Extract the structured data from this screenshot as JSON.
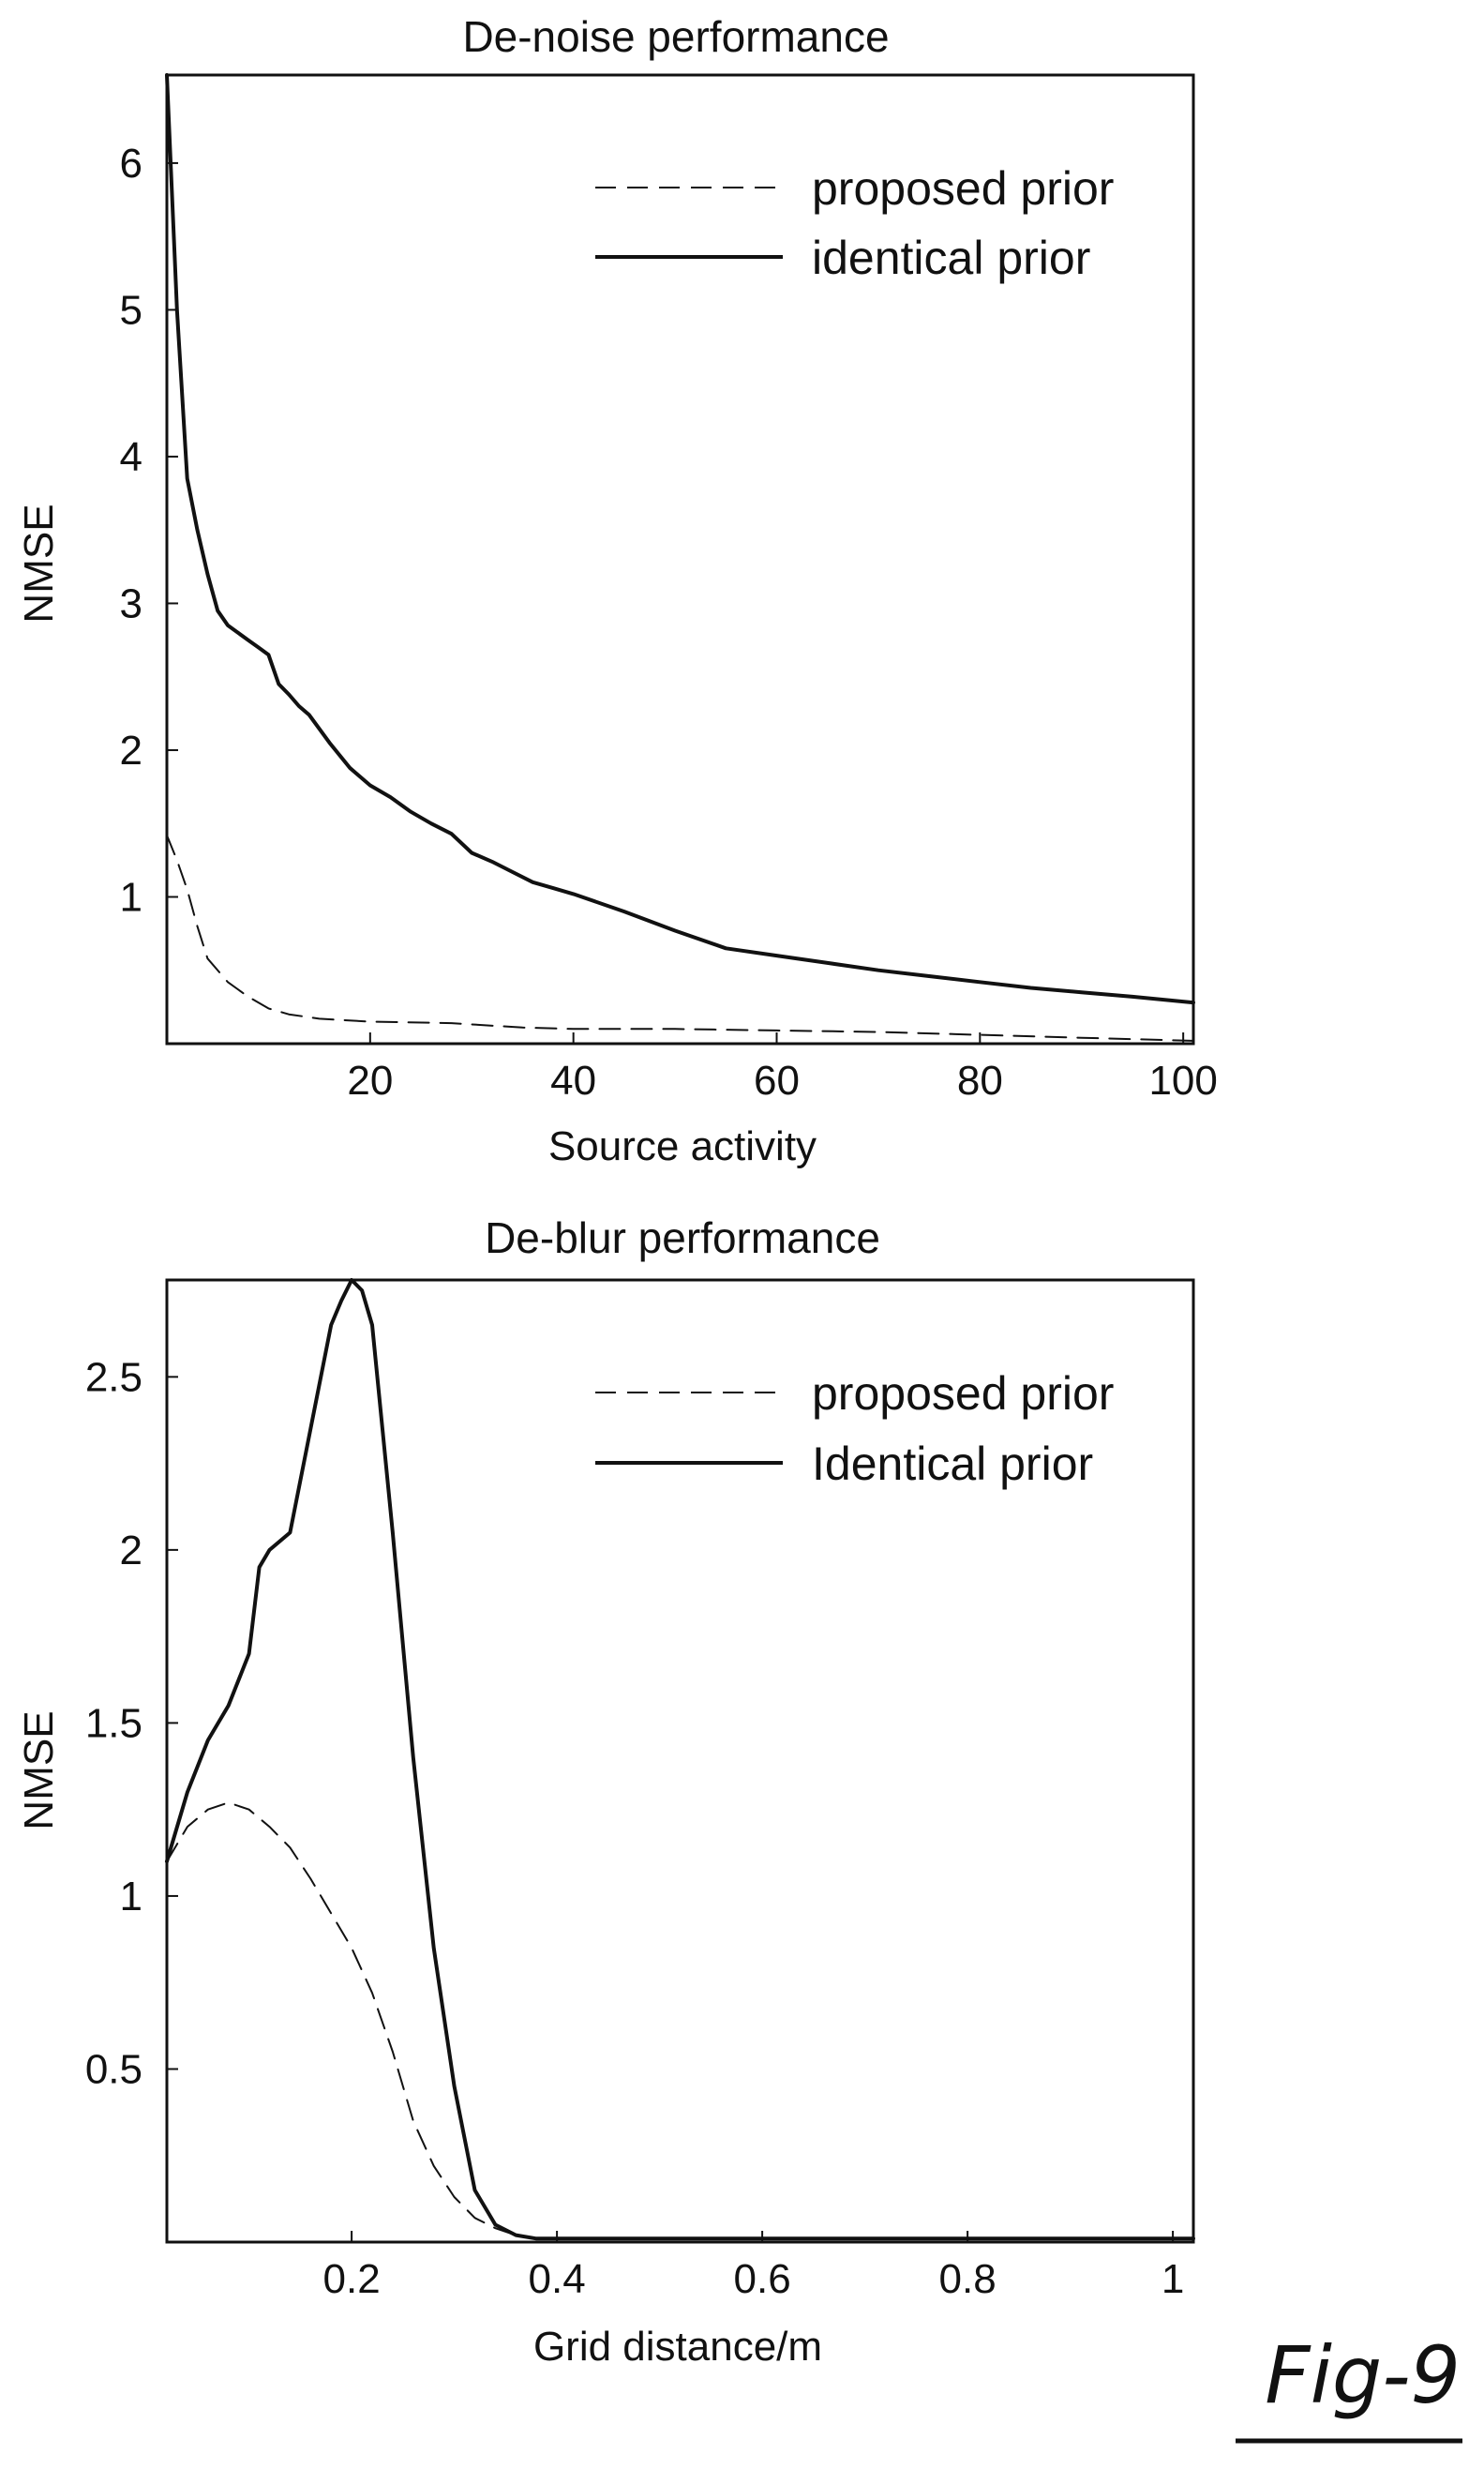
{
  "figure_label": "Fig-9",
  "chart_data": [
    {
      "type": "line",
      "title": "De-noise performance",
      "xlabel": "Source activity",
      "ylabel": "NMSE",
      "xlim": [
        0,
        101
      ],
      "ylim": [
        0,
        6.6
      ],
      "xticks": [
        "20",
        "40",
        "60",
        "80",
        "100"
      ],
      "yticks": [
        "1",
        "2",
        "3",
        "4",
        "5",
        "6"
      ],
      "legend_position": "top-right",
      "grid": false,
      "series": [
        {
          "name": "proposed prior",
          "style": "dashed",
          "x": [
            0,
            1,
            2,
            3,
            4,
            6,
            8,
            10,
            12,
            15,
            20,
            28,
            35,
            40,
            50,
            60,
            70,
            80,
            90,
            101
          ],
          "y": [
            1.42,
            1.25,
            1.05,
            0.8,
            0.58,
            0.42,
            0.32,
            0.24,
            0.2,
            0.17,
            0.15,
            0.14,
            0.11,
            0.1,
            0.1,
            0.09,
            0.08,
            0.06,
            0.04,
            0.02
          ]
        },
        {
          "name": "identical prior",
          "style": "solid",
          "x": [
            0,
            1,
            2,
            3,
            4,
            5,
            6,
            7,
            8,
            9,
            10,
            11,
            12,
            13,
            14,
            16,
            18,
            20,
            22,
            24,
            26,
            28,
            30,
            32,
            34,
            36,
            38,
            40,
            45,
            50,
            55,
            60,
            65,
            70,
            75,
            80,
            85,
            90,
            95,
            101
          ],
          "y": [
            6.6,
            5.0,
            3.85,
            3.5,
            3.2,
            2.95,
            2.85,
            2.8,
            2.75,
            2.7,
            2.65,
            2.45,
            2.38,
            2.3,
            2.24,
            2.05,
            1.88,
            1.76,
            1.68,
            1.58,
            1.5,
            1.43,
            1.3,
            1.24,
            1.17,
            1.1,
            1.06,
            1.02,
            0.9,
            0.77,
            0.65,
            0.6,
            0.55,
            0.5,
            0.46,
            0.42,
            0.38,
            0.35,
            0.32,
            0.28
          ]
        }
      ]
    },
    {
      "type": "line",
      "title": "De-blur performance",
      "xlabel": "Grid distance/m",
      "ylabel": "NMSE",
      "xlim": [
        0.02,
        1.02
      ],
      "ylim": [
        0,
        2.78
      ],
      "xticks": [
        "0.2",
        "0.4",
        "0.6",
        "0.8",
        "1"
      ],
      "yticks": [
        "0.5",
        "1",
        "1.5",
        "2",
        "2.5"
      ],
      "legend_position": "top-right",
      "grid": false,
      "series": [
        {
          "name": "proposed prior",
          "style": "dashed",
          "x": [
            0.02,
            0.04,
            0.06,
            0.08,
            0.1,
            0.12,
            0.14,
            0.16,
            0.18,
            0.2,
            0.22,
            0.24,
            0.26,
            0.28,
            0.3,
            0.32,
            0.34,
            0.36,
            0.38,
            0.4,
            0.6,
            0.8,
            1.02
          ],
          "y": [
            1.1,
            1.2,
            1.25,
            1.27,
            1.25,
            1.2,
            1.14,
            1.05,
            0.95,
            0.85,
            0.72,
            0.55,
            0.35,
            0.22,
            0.13,
            0.07,
            0.04,
            0.02,
            0.01,
            0.01,
            0.01,
            0.01,
            0.01
          ]
        },
        {
          "name": "Identical prior",
          "style": "solid",
          "x": [
            0.02,
            0.04,
            0.06,
            0.08,
            0.1,
            0.11,
            0.12,
            0.14,
            0.16,
            0.18,
            0.19,
            0.2,
            0.21,
            0.22,
            0.24,
            0.26,
            0.28,
            0.3,
            0.32,
            0.34,
            0.36,
            0.38,
            0.4,
            0.6,
            0.8,
            1.02
          ],
          "y": [
            1.1,
            1.3,
            1.45,
            1.55,
            1.7,
            1.95,
            2.0,
            2.05,
            2.35,
            2.65,
            2.72,
            2.78,
            2.75,
            2.65,
            2.05,
            1.4,
            0.85,
            0.45,
            0.15,
            0.05,
            0.02,
            0.01,
            0.01,
            0.01,
            0.01,
            0.01
          ]
        }
      ]
    }
  ]
}
